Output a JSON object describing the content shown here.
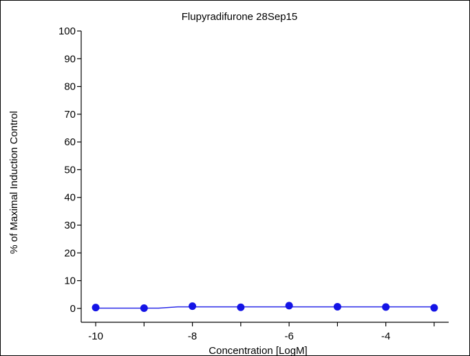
{
  "chart_data": {
    "type": "scatter",
    "title": "Flupyradifurone  28Sep15",
    "xlabel": "Concentration [LogM]",
    "ylabel": "% of Maximal Induction Control",
    "xlim": [
      -10.3,
      -2.7
    ],
    "ylim": [
      -5,
      100
    ],
    "x_ticks": [
      -10,
      -9,
      -8,
      -7,
      -6,
      -5,
      -4,
      -3
    ],
    "x_tick_labels": [
      "-10",
      "",
      "-8",
      "",
      "-6",
      "",
      "-4",
      ""
    ],
    "y_ticks": [
      0,
      10,
      20,
      30,
      40,
      50,
      60,
      70,
      80,
      90,
      100
    ],
    "y_tick_labels": [
      "0",
      "10",
      "20",
      "30",
      "40",
      "50",
      "60",
      "70",
      "80",
      "90",
      "100"
    ],
    "grid": false,
    "series": [
      {
        "values_type": "points",
        "color": "#1414e6",
        "points": [
          {
            "x": -10,
            "y": 0.3
          },
          {
            "x": -9,
            "y": 0.1
          },
          {
            "x": -8,
            "y": 0.8
          },
          {
            "x": -7,
            "y": 0.4
          },
          {
            "x": -6,
            "y": 1.0
          },
          {
            "x": -5,
            "y": 0.6
          },
          {
            "x": -4,
            "y": 0.5
          },
          {
            "x": -3,
            "y": 0.2
          }
        ]
      },
      {
        "values_type": "fit",
        "color": "#2a2ae8",
        "points": [
          {
            "x": -10,
            "y": 0.1
          },
          {
            "x": -8.7,
            "y": 0.1
          },
          {
            "x": -8.3,
            "y": 0.55
          },
          {
            "x": -3,
            "y": 0.55
          }
        ]
      }
    ]
  }
}
